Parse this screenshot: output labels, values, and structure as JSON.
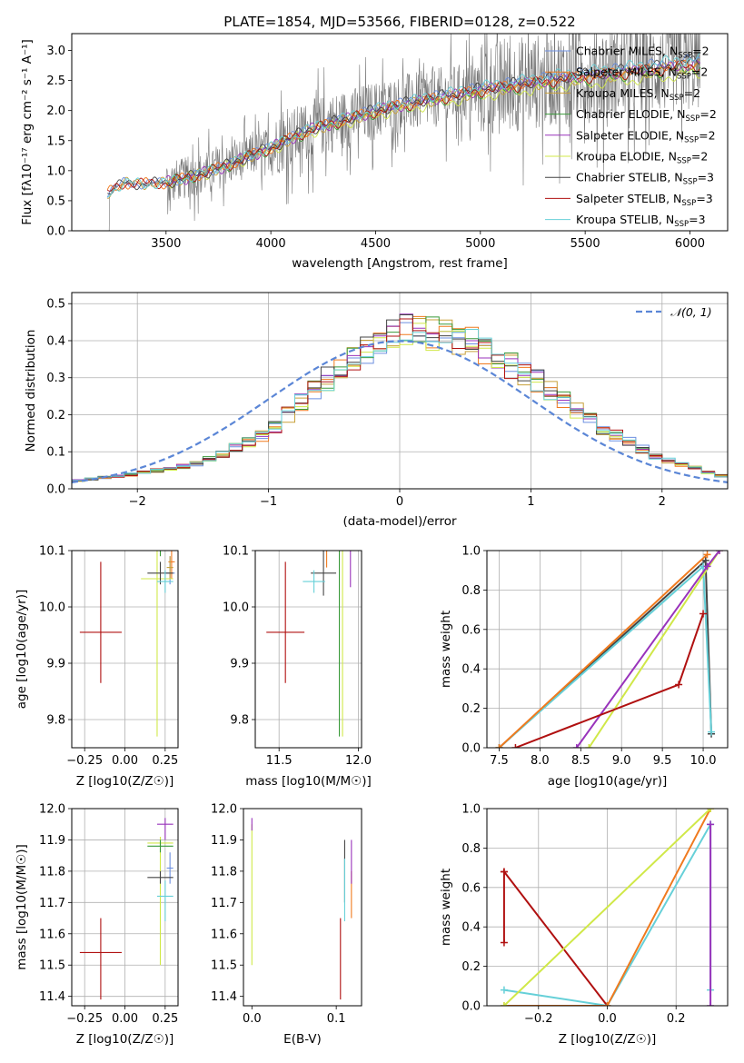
{
  "colors": {
    "chabrier_miles": "#6c8fe0",
    "salpeter_miles": "#f07a1e",
    "kroupa_miles": "#c8a13a",
    "chabrier_elodie": "#3a9a3a",
    "salpeter_elodie": "#9933bb",
    "kroupa_elodie": "#d0e848",
    "chabrier_stelib": "#444444",
    "salpeter_stelib": "#b01010",
    "kroupa_stelib": "#66d0d8",
    "data": "#777777",
    "normal": "#5b86d6"
  },
  "legend_labels": [
    {
      "key": "chabrier_miles",
      "text": "Chabrier MILES, N",
      "sub": "SSP",
      "tail": "=2"
    },
    {
      "key": "salpeter_miles",
      "text": "Salpeter MILES, N",
      "sub": "SSP",
      "tail": "=2"
    },
    {
      "key": "kroupa_miles",
      "text": "Kroupa MILES, N",
      "sub": "SSP",
      "tail": "=2"
    },
    {
      "key": "chabrier_elodie",
      "text": "Chabrier ELODIE, N",
      "sub": "SSP",
      "tail": "=2"
    },
    {
      "key": "salpeter_elodie",
      "text": "Salpeter ELODIE, N",
      "sub": "SSP",
      "tail": "=2"
    },
    {
      "key": "kroupa_elodie",
      "text": "Kroupa ELODIE, N",
      "sub": "SSP",
      "tail": "=2"
    },
    {
      "key": "chabrier_stelib",
      "text": "Chabrier STELIB, N",
      "sub": "SSP",
      "tail": "=3"
    },
    {
      "key": "salpeter_stelib",
      "text": "Salpeter STELIB, N",
      "sub": "SSP",
      "tail": "=3"
    },
    {
      "key": "kroupa_stelib",
      "text": "Kroupa STELIB, N",
      "sub": "SSP",
      "tail": "=3"
    }
  ],
  "chart_data": [
    {
      "id": "spectrum",
      "type": "line",
      "title": "PLATE=1854, MJD=53566, FIBERID=0128, z=0.522",
      "xlabel": "wavelength [Angstrom, rest frame]",
      "ylabel": "Flux [fλ10⁻¹⁷ erg cm⁻² s⁻¹ A⁻¹]",
      "xlim": [
        3050,
        6180
      ],
      "ylim": [
        0,
        3.28
      ],
      "xticks": [
        3500,
        4000,
        4500,
        5000,
        5500,
        6000
      ],
      "yticks": [
        0.0,
        0.5,
        1.0,
        1.5,
        2.0,
        2.5,
        3.0
      ],
      "x_range_data": [
        3220,
        6050
      ],
      "model_continuum": {
        "x": [
          3220,
          3300,
          3400,
          3500,
          3600,
          3700,
          3800,
          3900,
          4000,
          4100,
          4200,
          4300,
          4400,
          4500,
          4600,
          4700,
          4800,
          4900,
          5000,
          5200,
          5400,
          5600,
          5800,
          6000,
          6050
        ],
        "y": [
          0.62,
          0.8,
          0.78,
          0.8,
          0.88,
          0.98,
          1.1,
          1.25,
          1.38,
          1.55,
          1.7,
          1.8,
          1.9,
          2.0,
          2.08,
          2.15,
          2.22,
          2.28,
          2.35,
          2.45,
          2.55,
          2.62,
          2.7,
          2.78,
          2.8
        ]
      },
      "legend": "top-right",
      "grid": false
    },
    {
      "id": "residuals",
      "type": "step",
      "xlabel": "(data-model)/error",
      "ylabel": "Normed distribution",
      "xlim": [
        -2.5,
        2.5
      ],
      "ylim": [
        0,
        0.53
      ],
      "xticks": [
        -2,
        -1,
        0,
        1,
        2
      ],
      "yticks": [
        0.0,
        0.1,
        0.2,
        0.3,
        0.4,
        0.5
      ],
      "bin_width": 0.1,
      "normal_label": "𝒩(0, 1)",
      "envelope": {
        "x": [
          -2.5,
          -2.0,
          -1.5,
          -1.0,
          -0.5,
          0.0,
          0.5,
          1.0,
          1.5,
          2.0,
          2.5
        ],
        "y": [
          0.02,
          0.04,
          0.07,
          0.15,
          0.31,
          0.43,
          0.4,
          0.3,
          0.17,
          0.08,
          0.03
        ]
      },
      "grid": true
    },
    {
      "id": "age_vs_Z",
      "type": "errorbar",
      "xlabel": "Z [log10(Z/Z☉)]",
      "ylabel": "age  [log10(age/yr)]",
      "xlim": [
        -0.33,
        0.33
      ],
      "ylim": [
        9.75,
        10.1
      ],
      "xticks": [
        -0.25,
        0.0,
        0.25
      ],
      "yticks": [
        9.8,
        9.9,
        10.0,
        10.1
      ],
      "points": [
        {
          "key": "salpeter_stelib",
          "x": -0.15,
          "xerr": [
            0.13,
            0.13
          ],
          "y": 9.955,
          "yerr": [
            0.09,
            0.125
          ]
        },
        {
          "key": "chabrier_miles",
          "x": 0.28,
          "xerr": [
            0.03,
            0.03
          ],
          "y": 10.06,
          "yerr": [
            0.02,
            0.03
          ]
        },
        {
          "key": "salpeter_miles",
          "x": 0.29,
          "xerr": [
            0.02,
            0.02
          ],
          "y": 10.08,
          "yerr": [
            0.03,
            0.02
          ]
        },
        {
          "key": "kroupa_miles",
          "x": 0.28,
          "xerr": [
            0.02,
            0.02
          ],
          "y": 10.07,
          "yerr": [
            0.02,
            0.02
          ]
        },
        {
          "key": "chabrier_elodie",
          "x": 0.22,
          "xerr": [
            0.08,
            0.08
          ],
          "y": 10.11,
          "yerr": [
            0.02,
            0.02
          ]
        },
        {
          "key": "salpeter_elodie",
          "x": 0.25,
          "xerr": [
            0.05,
            0.05
          ],
          "y": 10.12,
          "yerr": [
            0.02,
            0.02
          ]
        },
        {
          "key": "kroupa_elodie",
          "x": 0.2,
          "xerr": [
            0.1,
            0.1
          ],
          "y": 10.05,
          "yerr": [
            0.28,
            0.05
          ]
        },
        {
          "key": "chabrier_stelib",
          "x": 0.22,
          "xerr": [
            0.08,
            0.08
          ],
          "y": 10.06,
          "yerr": [
            0.02,
            0.02
          ]
        },
        {
          "key": "kroupa_stelib",
          "x": 0.25,
          "xerr": [
            0.05,
            0.05
          ],
          "y": 10.045,
          "yerr": [
            0.02,
            0.02
          ]
        }
      ],
      "grid": true
    },
    {
      "id": "age_vs_mass",
      "type": "errorbar",
      "xlabel": "mass [log10(M/M☉)]",
      "ylabel": "",
      "xlim": [
        11.35,
        12.02
      ],
      "ylim": [
        9.75,
        10.1
      ],
      "xticks": [
        11.5,
        12.0
      ],
      "yticks": [
        9.8,
        9.9,
        10.0,
        10.1
      ],
      "points": [
        {
          "key": "salpeter_stelib",
          "x": 11.54,
          "xerr": [
            0.12,
            0.12
          ],
          "y": 9.955,
          "yerr": [
            0.09,
            0.125
          ]
        },
        {
          "key": "kroupa_elodie",
          "x": 11.9,
          "xerr": [
            0.13,
            0.13
          ],
          "y": 10.1,
          "yerr": [
            0.33,
            0.02
          ]
        },
        {
          "key": "chabrier_elodie",
          "x": 11.88,
          "xerr": [
            0.14,
            0.14
          ],
          "y": 10.11,
          "yerr": [
            0.34,
            0.02
          ]
        },
        {
          "key": "salpeter_miles",
          "x": 11.8,
          "xerr": [
            0.09,
            0.09
          ],
          "y": 10.12,
          "yerr": [
            0.05,
            0.02
          ]
        },
        {
          "key": "salpeter_elodie",
          "x": 11.95,
          "xerr": [
            0.05,
            0.05
          ],
          "y": 10.115,
          "yerr": [
            0.08,
            0.02
          ]
        },
        {
          "key": "chabrier_stelib",
          "x": 11.78,
          "xerr": [
            0.08,
            0.08
          ],
          "y": 10.06,
          "yerr": [
            0.04,
            0.04
          ]
        },
        {
          "key": "kroupa_stelib",
          "x": 11.72,
          "xerr": [
            0.07,
            0.07
          ],
          "y": 10.045,
          "yerr": [
            0.02,
            0.02
          ]
        }
      ],
      "grid": true
    },
    {
      "id": "massweight_vs_age",
      "type": "line",
      "xlabel": "age  [log10(age/yr)]",
      "ylabel": "mass weight",
      "xlim": [
        7.35,
        10.3
      ],
      "ylim": [
        0,
        1.0
      ],
      "xticks": [
        7.5,
        8.0,
        8.5,
        9.0,
        9.5,
        10.0
      ],
      "yticks": [
        0.0,
        0.2,
        0.4,
        0.6,
        0.8,
        1.0
      ],
      "series": [
        {
          "key": "chabrier_stelib",
          "x": [
            7.5,
            10.03,
            10.1
          ],
          "y": [
            0.0,
            0.95,
            0.07
          ]
        },
        {
          "key": "kroupa_stelib",
          "x": [
            7.5,
            10.0,
            10.1
          ],
          "y": [
            0.0,
            0.92,
            0.08
          ]
        },
        {
          "key": "salpeter_miles",
          "x": [
            7.5,
            10.05
          ],
          "y": [
            0.0,
            0.98
          ]
        },
        {
          "key": "kroupa_elodie",
          "x": [
            8.6,
            10.2
          ],
          "y": [
            0.0,
            1.0
          ]
        },
        {
          "key": "salpeter_elodie",
          "x": [
            8.45,
            10.05,
            10.2
          ],
          "y": [
            0.0,
            0.92,
            1.0
          ]
        },
        {
          "key": "salpeter_stelib",
          "x": [
            7.7,
            9.7,
            10.0
          ],
          "y": [
            0.0,
            0.32,
            0.68
          ]
        }
      ],
      "grid": true
    },
    {
      "id": "mass_vs_Z",
      "type": "errorbar",
      "xlabel": "Z [log10(Z/Z☉)]",
      "ylabel": "mass [log10(M/M☉)]",
      "xlim": [
        -0.33,
        0.33
      ],
      "ylim": [
        11.37,
        12.0
      ],
      "xticks": [
        -0.25,
        0.0,
        0.25
      ],
      "yticks": [
        11.4,
        11.5,
        11.6,
        11.7,
        11.8,
        11.9,
        12.0
      ],
      "points": [
        {
          "key": "salpeter_stelib",
          "x": -0.15,
          "xerr": [
            0.13,
            0.13
          ],
          "y": 11.54,
          "yerr": [
            0.15,
            0.11
          ]
        },
        {
          "key": "salpeter_elodie",
          "x": 0.25,
          "xerr": [
            0.05,
            0.05
          ],
          "y": 11.95,
          "yerr": [
            0.05,
            0.02
          ]
        },
        {
          "key": "kroupa_elodie",
          "x": 0.22,
          "xerr": [
            0.08,
            0.08
          ],
          "y": 11.89,
          "yerr": [
            0.39,
            0.02
          ]
        },
        {
          "key": "chabrier_elodie",
          "x": 0.22,
          "xerr": [
            0.08,
            0.08
          ],
          "y": 11.88,
          "yerr": [
            0.02,
            0.02
          ]
        },
        {
          "key": "chabrier_miles",
          "x": 0.28,
          "xerr": [
            0.02,
            0.02
          ],
          "y": 11.81,
          "yerr": [
            0.05,
            0.05
          ]
        },
        {
          "key": "chabrier_stelib",
          "x": 0.22,
          "xerr": [
            0.08,
            0.08
          ],
          "y": 11.78,
          "yerr": [
            0.02,
            0.02
          ]
        },
        {
          "key": "kroupa_stelib",
          "x": 0.25,
          "xerr": [
            0.05,
            0.05
          ],
          "y": 11.72,
          "yerr": [
            0.08,
            0.05
          ]
        }
      ],
      "grid": true
    },
    {
      "id": "mass_vs_ebv",
      "type": "errorbar",
      "xlabel": "E(B-V)",
      "ylabel": "",
      "xlim": [
        -0.01,
        0.13
      ],
      "ylim": [
        11.37,
        12.0
      ],
      "xticks": [
        0.0,
        0.1
      ],
      "yticks": [
        11.4,
        11.5,
        11.6,
        11.7,
        11.8,
        11.9,
        12.0
      ],
      "points": [
        {
          "key": "kroupa_elodie",
          "x": 0.0,
          "xerr": [
            0,
            0
          ],
          "y": 11.7,
          "yerr": [
            0.2,
            0.25
          ]
        },
        {
          "key": "salpeter_elodie",
          "x": 0.0,
          "xerr": [
            0,
            0
          ],
          "y": 11.95,
          "yerr": [
            0.02,
            0.02
          ]
        },
        {
          "key": "salpeter_stelib",
          "x": 0.105,
          "xerr": [
            0,
            0
          ],
          "y": 11.54,
          "yerr": [
            0.15,
            0.11
          ]
        },
        {
          "key": "chabrier_stelib",
          "x": 0.11,
          "xerr": [
            0,
            0
          ],
          "y": 11.8,
          "yerr": [
            0.1,
            0.1
          ]
        },
        {
          "key": "kroupa_stelib",
          "x": 0.11,
          "xerr": [
            0,
            0
          ],
          "y": 11.74,
          "yerr": [
            0.1,
            0.1
          ]
        },
        {
          "key": "salpeter_miles",
          "x": 0.118,
          "xerr": [
            0,
            0
          ],
          "y": 11.75,
          "yerr": [
            0.1,
            0.05
          ]
        },
        {
          "key": "salpeter_elodie",
          "x": 0.118,
          "xerr": [
            0,
            0
          ],
          "y": 11.82,
          "yerr": [
            0.06,
            0.08
          ]
        }
      ],
      "grid": false
    },
    {
      "id": "massweight_vs_Z",
      "type": "line",
      "xlabel": "Z [log10(Z/Z☉)]",
      "ylabel": "mass weight",
      "xlim": [
        -0.35,
        0.35
      ],
      "ylim": [
        0,
        1.0
      ],
      "xticks": [
        -0.2,
        0.0,
        0.2
      ],
      "yticks": [
        0.0,
        0.2,
        0.4,
        0.6,
        0.8,
        1.0
      ],
      "series": [
        {
          "key": "salpeter_stelib",
          "x": [
            -0.3,
            -0.3,
            0.0,
            -0.3
          ],
          "y": [
            0.32,
            0.68,
            0.0,
            0.68
          ]
        },
        {
          "key": "kroupa_stelib",
          "x": [
            -0.3,
            0.0,
            0.3,
            0.3
          ],
          "y": [
            0.08,
            0.0,
            0.92,
            0.08
          ]
        },
        {
          "key": "salpeter_miles",
          "x": [
            -0.3,
            0.0,
            0.3
          ],
          "y": [
            0.0,
            0.0,
            1.0
          ]
        },
        {
          "key": "kroupa_elodie",
          "x": [
            -0.3,
            0.3
          ],
          "y": [
            0.0,
            1.0
          ]
        },
        {
          "key": "salpeter_elodie",
          "x": [
            0.3,
            0.3
          ],
          "y": [
            0.0,
            0.92
          ]
        }
      ],
      "grid": true
    }
  ]
}
